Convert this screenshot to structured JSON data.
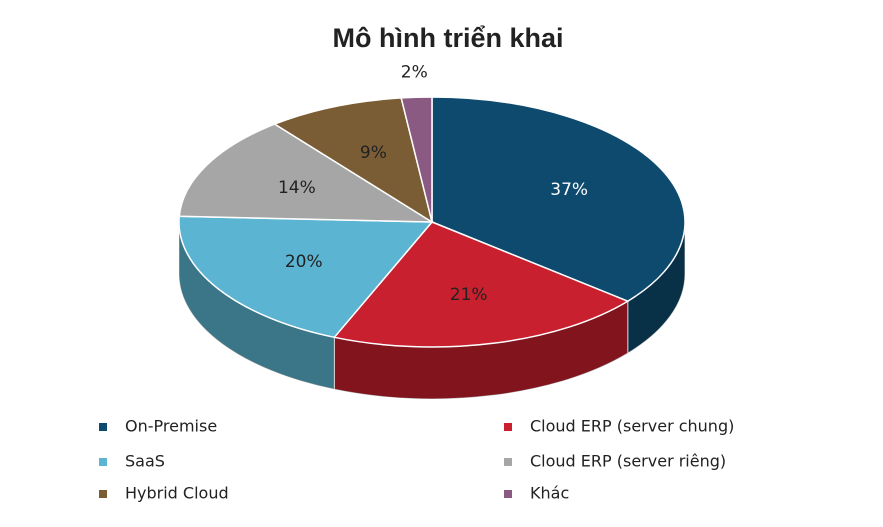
{
  "chart_data": {
    "type": "pie",
    "title": "Mô hình triển khai",
    "categories": [
      "On-Premise",
      "Cloud ERP (server chung)",
      "SaaS",
      "Cloud ERP (server riêng)",
      "Hybrid Cloud",
      "Khác"
    ],
    "values": [
      37,
      21,
      20,
      14,
      9,
      2
    ],
    "value_labels": [
      "37%",
      "21%",
      "20%",
      "14%",
      "9%",
      "2%"
    ],
    "colors": [
      "#0d4a6e",
      "#c8202f",
      "#5ab4d2",
      "#a6a6a6",
      "#7a5c35",
      "#8b5a83"
    ]
  }
}
